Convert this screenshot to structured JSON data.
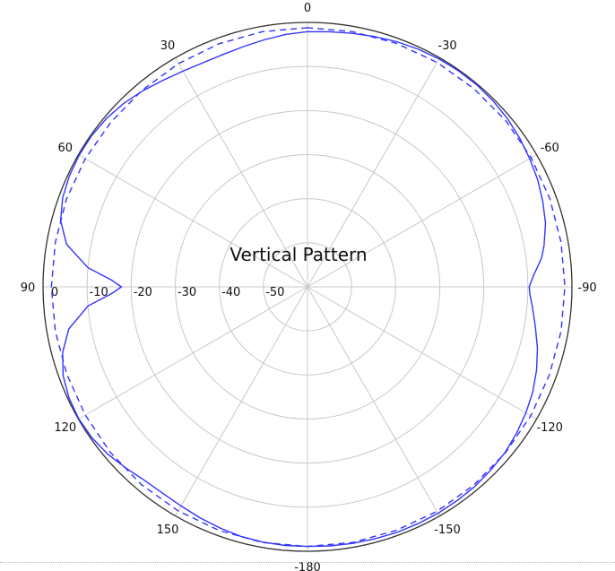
{
  "chart_data": {
    "type": "polar-line",
    "title": "Vertical Pattern",
    "r_ticks": [
      0,
      -10,
      -20,
      -30,
      -40,
      -50
    ],
    "r_tick_labels": [
      "0",
      "-10",
      "-20",
      "-30",
      "-40",
      "-50"
    ],
    "r_range": [
      -60,
      0
    ],
    "angle_labels": [
      {
        "angle": 0,
        "label": "0"
      },
      {
        "angle": 30,
        "label": "30"
      },
      {
        "angle": 60,
        "label": "60"
      },
      {
        "angle": 90,
        "label": "90"
      },
      {
        "angle": 120,
        "label": "120"
      },
      {
        "angle": 150,
        "label": "150"
      },
      {
        "angle": 180,
        "label": "-180"
      },
      {
        "angle": -150,
        "label": "-150"
      },
      {
        "angle": -120,
        "label": "-120"
      },
      {
        "angle": -90,
        "label": "-90"
      },
      {
        "angle": -60,
        "label": "-60"
      },
      {
        "angle": -30,
        "label": "-30"
      }
    ],
    "angle_direction": "counterclockwise-positive, 0 at top",
    "grid": true,
    "series": [
      {
        "style": "solid",
        "color": "#3333ff",
        "points": [
          [
            0,
            -2.1
          ],
          [
            5,
            -2.5
          ],
          [
            10,
            -3.1
          ],
          [
            15,
            -3.6
          ],
          [
            20,
            -3.9
          ],
          [
            25,
            -3.9
          ],
          [
            30,
            -3.5
          ],
          [
            35,
            -2.8
          ],
          [
            40,
            -1.9
          ],
          [
            45,
            -1.1
          ],
          [
            50,
            -0.5
          ],
          [
            55,
            -0.2
          ],
          [
            60,
            -0.2
          ],
          [
            65,
            -0.4
          ],
          [
            70,
            -0.9
          ],
          [
            75,
            -2.0
          ],
          [
            80,
            -4.5
          ],
          [
            85,
            -10.0
          ],
          [
            88,
            -15.5
          ],
          [
            90,
            -17.8
          ],
          [
            92,
            -15.5
          ],
          [
            95,
            -10.0
          ],
          [
            100,
            -5.0
          ],
          [
            105,
            -2.5
          ],
          [
            110,
            -1.0
          ],
          [
            115,
            -0.3
          ],
          [
            120,
            -0.1
          ],
          [
            125,
            -0.3
          ],
          [
            130,
            -0.9
          ],
          [
            135,
            -1.8
          ],
          [
            140,
            -2.6
          ],
          [
            145,
            -2.8
          ],
          [
            150,
            -2.6
          ],
          [
            155,
            -2.2
          ],
          [
            160,
            -1.8
          ],
          [
            165,
            -1.4
          ],
          [
            170,
            -1.2
          ],
          [
            175,
            -1.1
          ],
          [
            180,
            -1.1
          ],
          [
            -175,
            -1.0
          ],
          [
            -170,
            -0.9
          ],
          [
            -165,
            -0.8
          ],
          [
            -160,
            -0.7
          ],
          [
            -155,
            -0.7
          ],
          [
            -150,
            -0.7
          ],
          [
            -145,
            -0.8
          ],
          [
            -140,
            -0.9
          ],
          [
            -135,
            -1.2
          ],
          [
            -130,
            -1.5
          ],
          [
            -125,
            -2.1
          ],
          [
            -120,
            -2.8
          ],
          [
            -115,
            -3.6
          ],
          [
            -110,
            -4.7
          ],
          [
            -105,
            -6.0
          ],
          [
            -100,
            -7.5
          ],
          [
            -95,
            -8.8
          ],
          [
            -92,
            -9.5
          ],
          [
            -90,
            -9.7
          ],
          [
            -87,
            -8.6
          ],
          [
            -83,
            -6.5
          ],
          [
            -80,
            -5.5
          ],
          [
            -75,
            -4.1
          ],
          [
            -70,
            -3.2
          ],
          [
            -65,
            -2.4
          ],
          [
            -60,
            -1.8
          ],
          [
            -55,
            -1.2
          ],
          [
            -50,
            -0.7
          ],
          [
            -45,
            -0.4
          ],
          [
            -40,
            -0.2
          ],
          [
            -35,
            -0.2
          ],
          [
            -30,
            -0.3
          ],
          [
            -25,
            -0.5
          ],
          [
            -20,
            -0.8
          ],
          [
            -15,
            -1.2
          ],
          [
            -10,
            -1.6
          ],
          [
            -5,
            -1.9
          ]
        ]
      },
      {
        "style": "dashed",
        "color": "#3333ff",
        "points": [
          [
            0,
            -1.2
          ],
          [
            10,
            -1.2
          ],
          [
            20,
            -1.3
          ],
          [
            30,
            -1.5
          ],
          [
            40,
            -1.7
          ],
          [
            50,
            -1.8
          ],
          [
            60,
            -1.8
          ],
          [
            70,
            -1.8
          ],
          [
            80,
            -1.9
          ],
          [
            90,
            -1.9
          ],
          [
            100,
            -1.9
          ],
          [
            110,
            -1.9
          ],
          [
            120,
            -1.8
          ],
          [
            130,
            -1.6
          ],
          [
            140,
            -1.4
          ],
          [
            150,
            -1.3
          ],
          [
            160,
            -1.2
          ],
          [
            170,
            -1.1
          ],
          [
            180,
            -1.1
          ],
          [
            -170,
            -1.1
          ],
          [
            -160,
            -1.2
          ],
          [
            -150,
            -1.2
          ],
          [
            -140,
            -1.3
          ],
          [
            -130,
            -1.4
          ],
          [
            -120,
            -1.5
          ],
          [
            -110,
            -1.6
          ],
          [
            -100,
            -1.6
          ],
          [
            -90,
            -1.6
          ],
          [
            -80,
            -1.6
          ],
          [
            -70,
            -1.5
          ],
          [
            -60,
            -1.4
          ],
          [
            -50,
            -1.3
          ],
          [
            -40,
            -1.3
          ],
          [
            -30,
            -1.2
          ],
          [
            -20,
            -1.2
          ],
          [
            -10,
            -1.2
          ]
        ]
      }
    ]
  }
}
